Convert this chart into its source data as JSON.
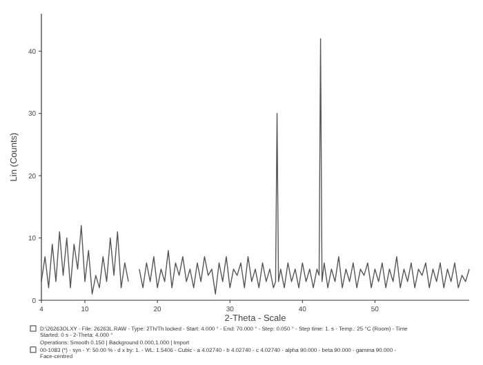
{
  "chart_data": {
    "type": "line",
    "xlabel": "2-Theta - Scale",
    "ylabel": "Lin (Counts)",
    "xlim": [
      4,
      63
    ],
    "xticks": [
      4,
      10,
      20,
      30,
      40,
      50
    ],
    "ylim": [
      0,
      46
    ],
    "yticks": [
      0,
      10,
      20,
      30,
      40
    ],
    "grid": false,
    "marker": "none",
    "line_style": "solid",
    "series": [
      {
        "color": "#555555",
        "x": [
          4,
          4.5,
          5,
          5.5,
          6,
          6.5,
          7,
          7.5,
          8,
          8.5,
          9,
          9.5,
          10,
          10.5,
          11,
          11.5,
          12,
          12.5,
          13,
          13.5,
          14,
          14.5,
          15,
          15.5,
          16,
          16.5,
          17,
          17.5,
          18,
          18.5,
          19,
          19.5,
          20,
          20.5,
          21,
          21.5,
          22,
          22.5,
          23,
          23.5,
          24,
          24.5,
          25,
          25.5,
          26,
          26.5,
          27,
          27.5,
          28,
          28.5,
          29,
          29.5,
          30,
          30.5,
          31,
          31.5,
          32,
          32.5,
          33,
          33.5,
          34,
          34.5,
          35,
          35.5,
          36,
          36.3,
          36.5,
          36.7,
          37,
          37.5,
          38,
          38.5,
          39,
          39.5,
          40,
          40.5,
          41,
          41.5,
          42,
          42.3,
          42.5,
          42.7,
          43,
          43.5,
          44,
          44.5,
          45,
          45.5,
          46,
          46.5,
          47,
          47.5,
          48,
          48.5,
          49,
          49.5,
          50,
          50.5,
          51,
          51.5,
          52,
          52.5,
          53,
          53.5,
          54,
          54.5,
          55,
          55.5,
          56,
          56.5,
          57,
          57.5,
          58,
          58.5,
          59,
          59.5,
          60,
          60.5,
          61,
          61.5,
          62,
          62.5,
          63
        ],
        "values": [
          3,
          7,
          2,
          9,
          3,
          11,
          4,
          10,
          2,
          9,
          5,
          12,
          3,
          8,
          1,
          4,
          2,
          7,
          3,
          10,
          4,
          11,
          2,
          6,
          3,
          null,
          null,
          5,
          2,
          6,
          3,
          7,
          2,
          5,
          3,
          8,
          2,
          6,
          4,
          7,
          3,
          5,
          2,
          6,
          3,
          7,
          4,
          5,
          1,
          6,
          3,
          7,
          2,
          5,
          4,
          6,
          2,
          7,
          3,
          5,
          2,
          6,
          3,
          5,
          2,
          3,
          30,
          3,
          5,
          2,
          6,
          3,
          5,
          2,
          6,
          3,
          5,
          2,
          5,
          4,
          42,
          3,
          6,
          2,
          5,
          3,
          7,
          2,
          5,
          3,
          6,
          2,
          5,
          4,
          6,
          2,
          5,
          3,
          6,
          2,
          5,
          3,
          7,
          2,
          5,
          3,
          6,
          2,
          5,
          4,
          6,
          2,
          5,
          3,
          6,
          2,
          5,
          3,
          6,
          2,
          4,
          3,
          5
        ]
      }
    ],
    "annotations": [
      "D:\\26263OLXY - File: 26263L.RAW - Type: 2Th/Th locked - Start: 4.000 ° - End: 70.000 ° - Step: 0.050 ° - Step time: 1. s - Temp.: 25 °C (Room) - Time Started: 0 s - 2-Theta: 4.000 °",
      "Operations: Smooth 0.150 | Background 0.000,1.000 | Import",
      "00-1083 (*) - syn - Y: 50.00 % - d x by: 1. - WL: 1.5406 - Cubic - a 4.02740 - b 4.02740 - c 4.02740 - alpha 90.000 - beta 90.000 - gamma 90.000 - Face-centred"
    ]
  }
}
